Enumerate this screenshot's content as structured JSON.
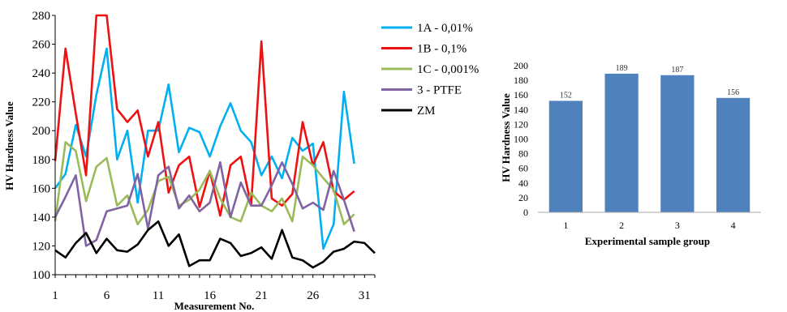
{
  "chart_data": [
    {
      "type": "line",
      "xlabel": "Measurement No.",
      "ylabel": "HV Hardness Value",
      "xlim": [
        1,
        32
      ],
      "ylim": [
        100,
        280
      ],
      "x_ticks": [
        1,
        6,
        11,
        16,
        21,
        26,
        31
      ],
      "y_ticks": [
        100,
        120,
        140,
        160,
        180,
        200,
        220,
        240,
        260,
        280
      ],
      "legend_position": "right",
      "x": [
        1,
        2,
        3,
        4,
        5,
        6,
        7,
        8,
        9,
        10,
        11,
        12,
        13,
        14,
        15,
        16,
        17,
        18,
        19,
        20,
        21,
        22,
        23,
        24,
        25,
        26,
        27,
        28,
        29,
        30,
        31,
        32
      ],
      "series": [
        {
          "name": "1A - 0,01%",
          "color": "#00b0f0",
          "values": [
            160,
            170,
            204,
            182,
            225,
            257,
            180,
            200,
            150,
            200,
            200,
            232,
            185,
            202,
            199,
            182,
            203,
            219,
            200,
            192,
            169,
            182,
            167,
            195,
            186,
            191,
            118,
            135,
            227,
            177,
            null,
            null
          ]
        },
        {
          "name": "1B - 0,1%",
          "color": "#ee1111",
          "values": [
            179,
            257,
            212,
            169,
            280,
            280,
            215,
            206,
            214,
            182,
            206,
            157,
            176,
            182,
            147,
            172,
            141,
            176,
            182,
            148,
            262,
            153,
            148,
            156,
            206,
            176,
            192,
            158,
            152,
            158,
            null,
            null
          ]
        },
        {
          "name": "1C - 0,001%",
          "color": "#9bbb59",
          "values": [
            137,
            192,
            186,
            151,
            175,
            181,
            148,
            155,
            135,
            145,
            165,
            168,
            148,
            152,
            159,
            172,
            153,
            140,
            137,
            157,
            148,
            144,
            153,
            137,
            182,
            176,
            167,
            159,
            135,
            142,
            null,
            null
          ]
        },
        {
          "name": "3 - PTFE",
          "color": "#8064a2",
          "values": [
            140,
            154,
            169,
            120,
            124,
            144,
            146,
            148,
            170,
            132,
            169,
            175,
            146,
            155,
            144,
            150,
            178,
            140,
            164,
            148,
            148,
            162,
            178,
            163,
            146,
            150,
            145,
            172,
            152,
            130,
            null,
            null
          ]
        },
        {
          "name": "ZM",
          "color": "#000000",
          "values": [
            117,
            112,
            122,
            129,
            115,
            125,
            117,
            116,
            121,
            131,
            137,
            120,
            128,
            106,
            110,
            110,
            125,
            122,
            113,
            115,
            119,
            111,
            131,
            112,
            110,
            105,
            109,
            116,
            118,
            123,
            122,
            115
          ]
        }
      ]
    },
    {
      "type": "bar",
      "xlabel": "Experimental sample group",
      "ylabel": "HV Hardness Value",
      "categories": [
        "1",
        "2",
        "3",
        "4"
      ],
      "values": [
        152,
        189,
        187,
        156
      ],
      "data_labels": [
        "152",
        "189",
        "187",
        "156"
      ],
      "ylim": [
        0,
        200
      ],
      "y_ticks": [
        0,
        20,
        40,
        60,
        80,
        100,
        120,
        140,
        160,
        180,
        200
      ],
      "color": "#4f81bd",
      "grid": false
    }
  ]
}
